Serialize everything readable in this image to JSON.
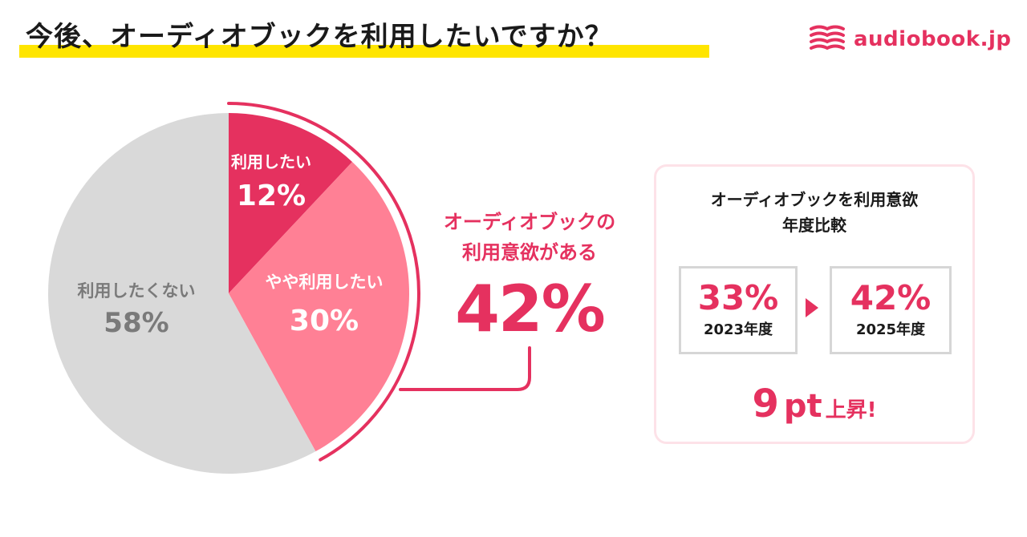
{
  "header": {
    "title": "今後、オーディオブックを利用したいですか？",
    "logo_text": "audiobook.jp"
  },
  "colors": {
    "accent": "#e5315f",
    "pink_light": "#ff8095",
    "gray": "#d9d9d9",
    "highlight": "#ffe500",
    "gray_text": "#7a7a7a"
  },
  "chart_data": {
    "type": "pie",
    "slices": [
      {
        "label": "利用したい",
        "value": 12,
        "value_label": "12%",
        "color": "#e5315f",
        "text_color": "#ffffff"
      },
      {
        "label": "やや利用したい",
        "value": 30,
        "value_label": "30%",
        "color": "#ff8095",
        "text_color": "#ffffff"
      },
      {
        "label": "利用したくない",
        "value": 58,
        "value_label": "58%",
        "color": "#d9d9d9",
        "text_color": "#7a7a7a"
      }
    ]
  },
  "callout": {
    "line1": "オーディオブックの",
    "line2": "利用意欲がある",
    "value": "42%"
  },
  "comparison": {
    "title_line1": "オーディオブックを利用意欲",
    "title_line2": "年度比較",
    "before": {
      "value": "33%",
      "label": "2023年度"
    },
    "after": {
      "value": "42%",
      "label": "2025年度"
    },
    "rise_number": "9",
    "rise_unit": "pt",
    "rise_text": "上昇!"
  }
}
